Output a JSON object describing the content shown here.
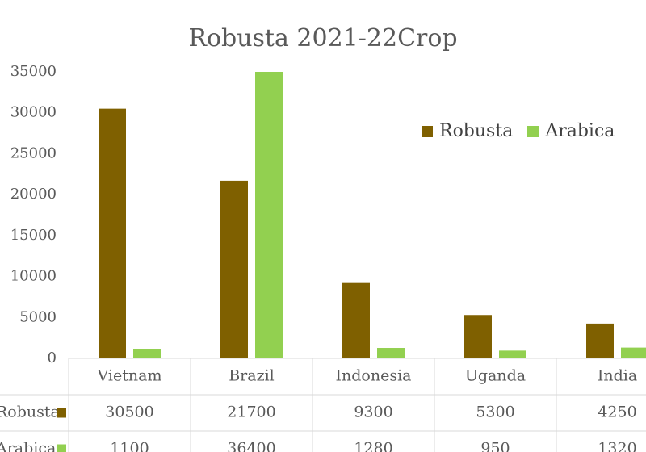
{
  "chart_data": {
    "type": "bar",
    "title": "Robusta 2021-22Crop",
    "categories": [
      "Vietnam",
      "Brazil",
      "Indonesia",
      "Uganda",
      "India"
    ],
    "series": [
      {
        "name": "Robusta",
        "color": "#7f6000",
        "values": [
          30500,
          21700,
          9300,
          5300,
          4250
        ]
      },
      {
        "name": "Arabica",
        "color": "#92d050",
        "values": [
          1100,
          36400,
          1280,
          950,
          1320
        ]
      }
    ],
    "table_values": {
      "Robusta": [
        "30500",
        "21700",
        "9300",
        "5300",
        "4250"
      ],
      "Arabica": [
        "1100",
        "36400",
        "1280",
        "950",
        "1320"
      ]
    },
    "ylim": [
      0,
      35000
    ],
    "yticks": [
      "0",
      "5000",
      "10000",
      "15000",
      "20000",
      "25000",
      "30000",
      "35000"
    ],
    "grid": false,
    "legend_position": "top-right",
    "has_data_table": true
  }
}
